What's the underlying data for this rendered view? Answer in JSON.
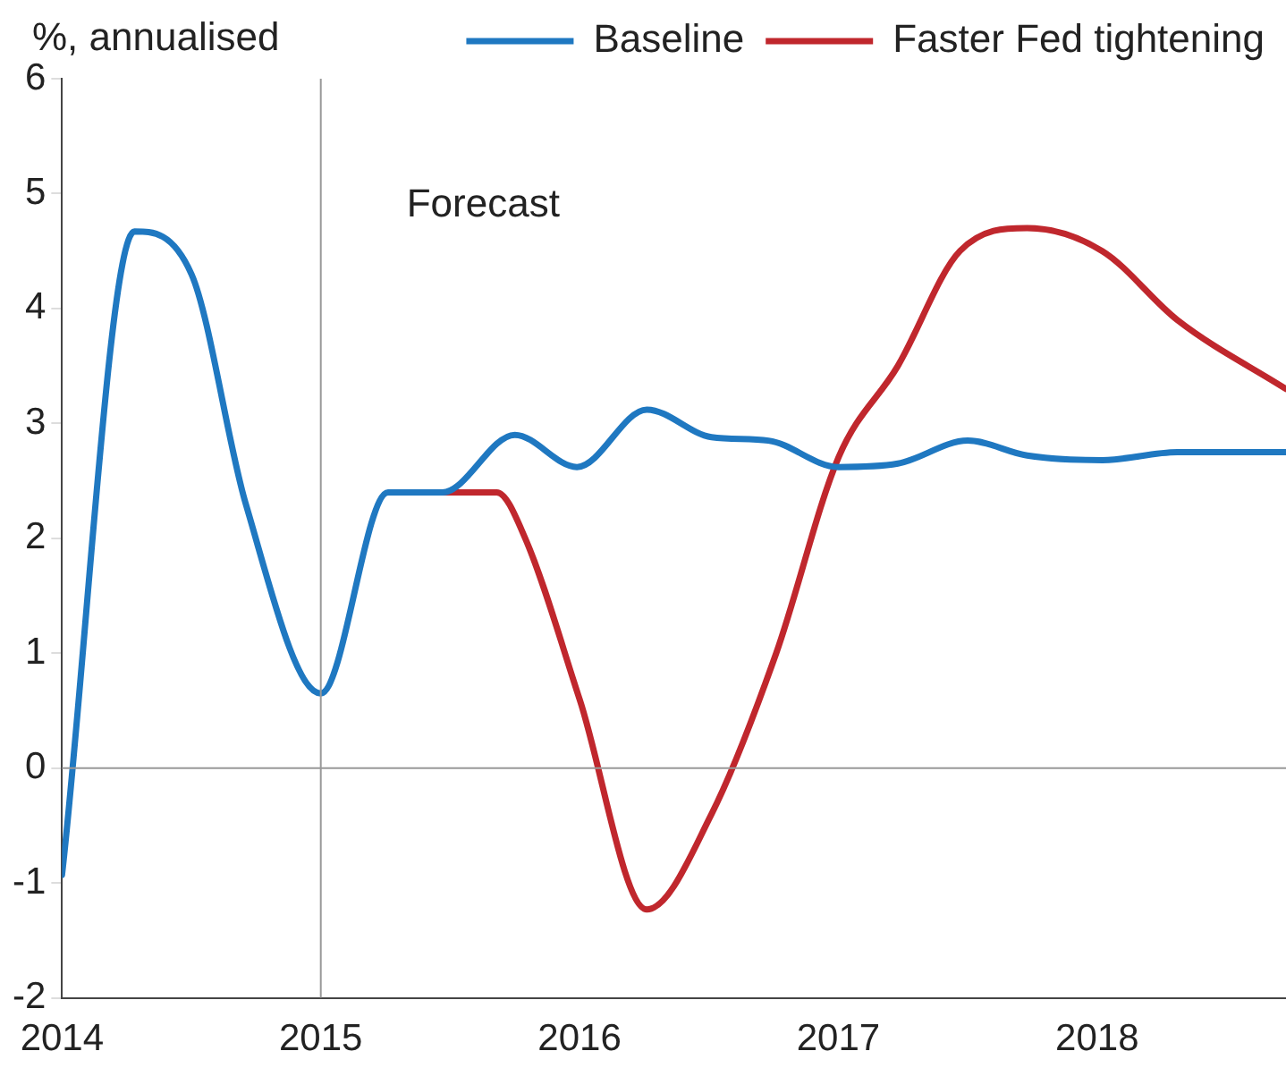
{
  "chart_data": {
    "type": "line",
    "ylabel": "%, annualised",
    "legend": "top right",
    "grid": false,
    "marker": "none",
    "line_style": "solid",
    "xlim": [
      2014,
      2018.73
    ],
    "xticks": [
      2014,
      2015,
      2016,
      2017,
      2018
    ],
    "ylim": [
      -2,
      6
    ],
    "yticks": [
      -2,
      -1,
      0,
      1,
      2,
      3,
      4,
      5,
      6
    ],
    "ref_lines": [
      {
        "axis": "x",
        "value": 2015,
        "label": "Forecast",
        "color": "#999999"
      },
      {
        "axis": "y",
        "value": 0,
        "label": null,
        "color": "#999999"
      }
    ],
    "series": [
      {
        "name": "Faster Fed tightening",
        "color": "#c0272d",
        "x": [
          2015.47,
          2015.68,
          2015.79,
          2016,
          2016.26,
          2016.51,
          2016.76,
          2017,
          2017.23,
          2017.47,
          2017.73,
          2018.02,
          2018.31,
          2018.73
        ],
        "values": [
          2.4,
          2.4,
          2.0,
          0.6,
          -1.23,
          -0.4,
          1.0,
          2.7,
          3.5,
          4.5,
          4.7,
          4.5,
          3.9,
          3.3
        ]
      },
      {
        "name": "Baseline",
        "color": "#1f78c1",
        "x": [
          2014,
          2014.28,
          2014.5,
          2014.71,
          2015,
          2015.26,
          2015.47,
          2015.75,
          2015.99,
          2016.26,
          2016.51,
          2016.73,
          2017,
          2017.23,
          2017.5,
          2017.73,
          2018.02,
          2018.31,
          2018.73
        ],
        "values": [
          -0.93,
          4.67,
          4.3,
          2.3,
          0.65,
          2.4,
          2.4,
          2.9,
          2.62,
          3.12,
          2.88,
          2.85,
          2.62,
          2.65,
          2.85,
          2.72,
          2.68,
          2.75,
          2.75
        ]
      }
    ]
  }
}
